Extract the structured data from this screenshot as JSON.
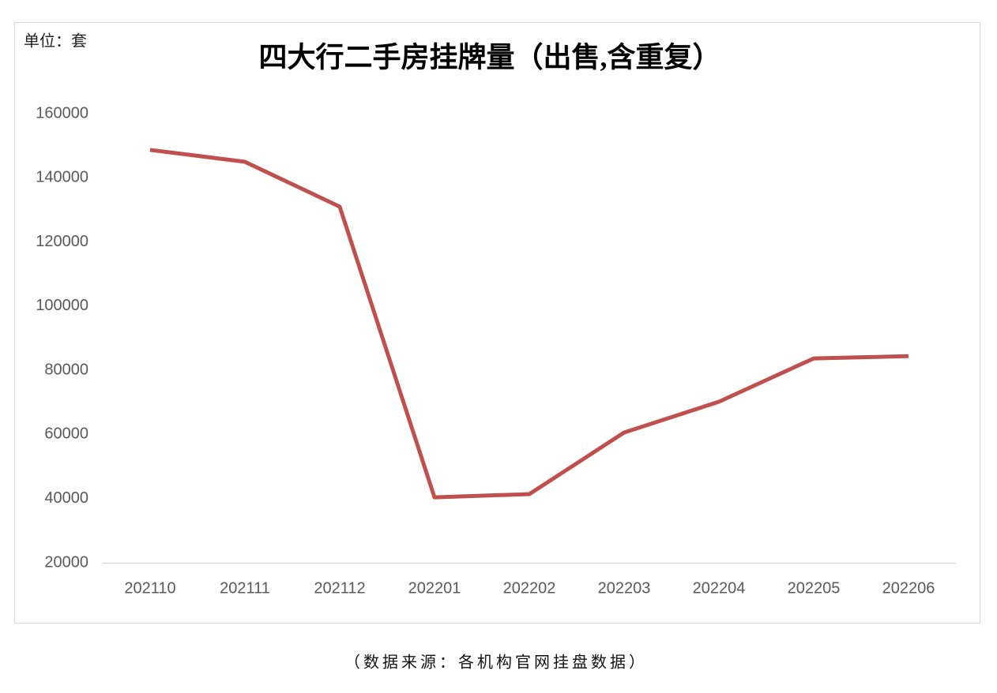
{
  "chart_data": {
    "type": "line",
    "title": "四大行二手房挂牌量（出售,含重复）",
    "unit_label": "单位：套",
    "source": "（数据来源：各机构官网挂盘数据）",
    "categories": [
      "202110",
      "202111",
      "202112",
      "202201",
      "202202",
      "202203",
      "202204",
      "202205",
      "202206"
    ],
    "series": [
      {
        "name": "挂牌量",
        "color": "#c0504d",
        "values": [
          148700,
          145000,
          131000,
          40400,
          41400,
          60600,
          70200,
          83700,
          84400
        ]
      }
    ],
    "ylim": [
      20000,
      160000
    ],
    "yticks": [
      20000,
      40000,
      60000,
      80000,
      100000,
      120000,
      140000,
      160000
    ],
    "grid": false,
    "legend": false
  }
}
